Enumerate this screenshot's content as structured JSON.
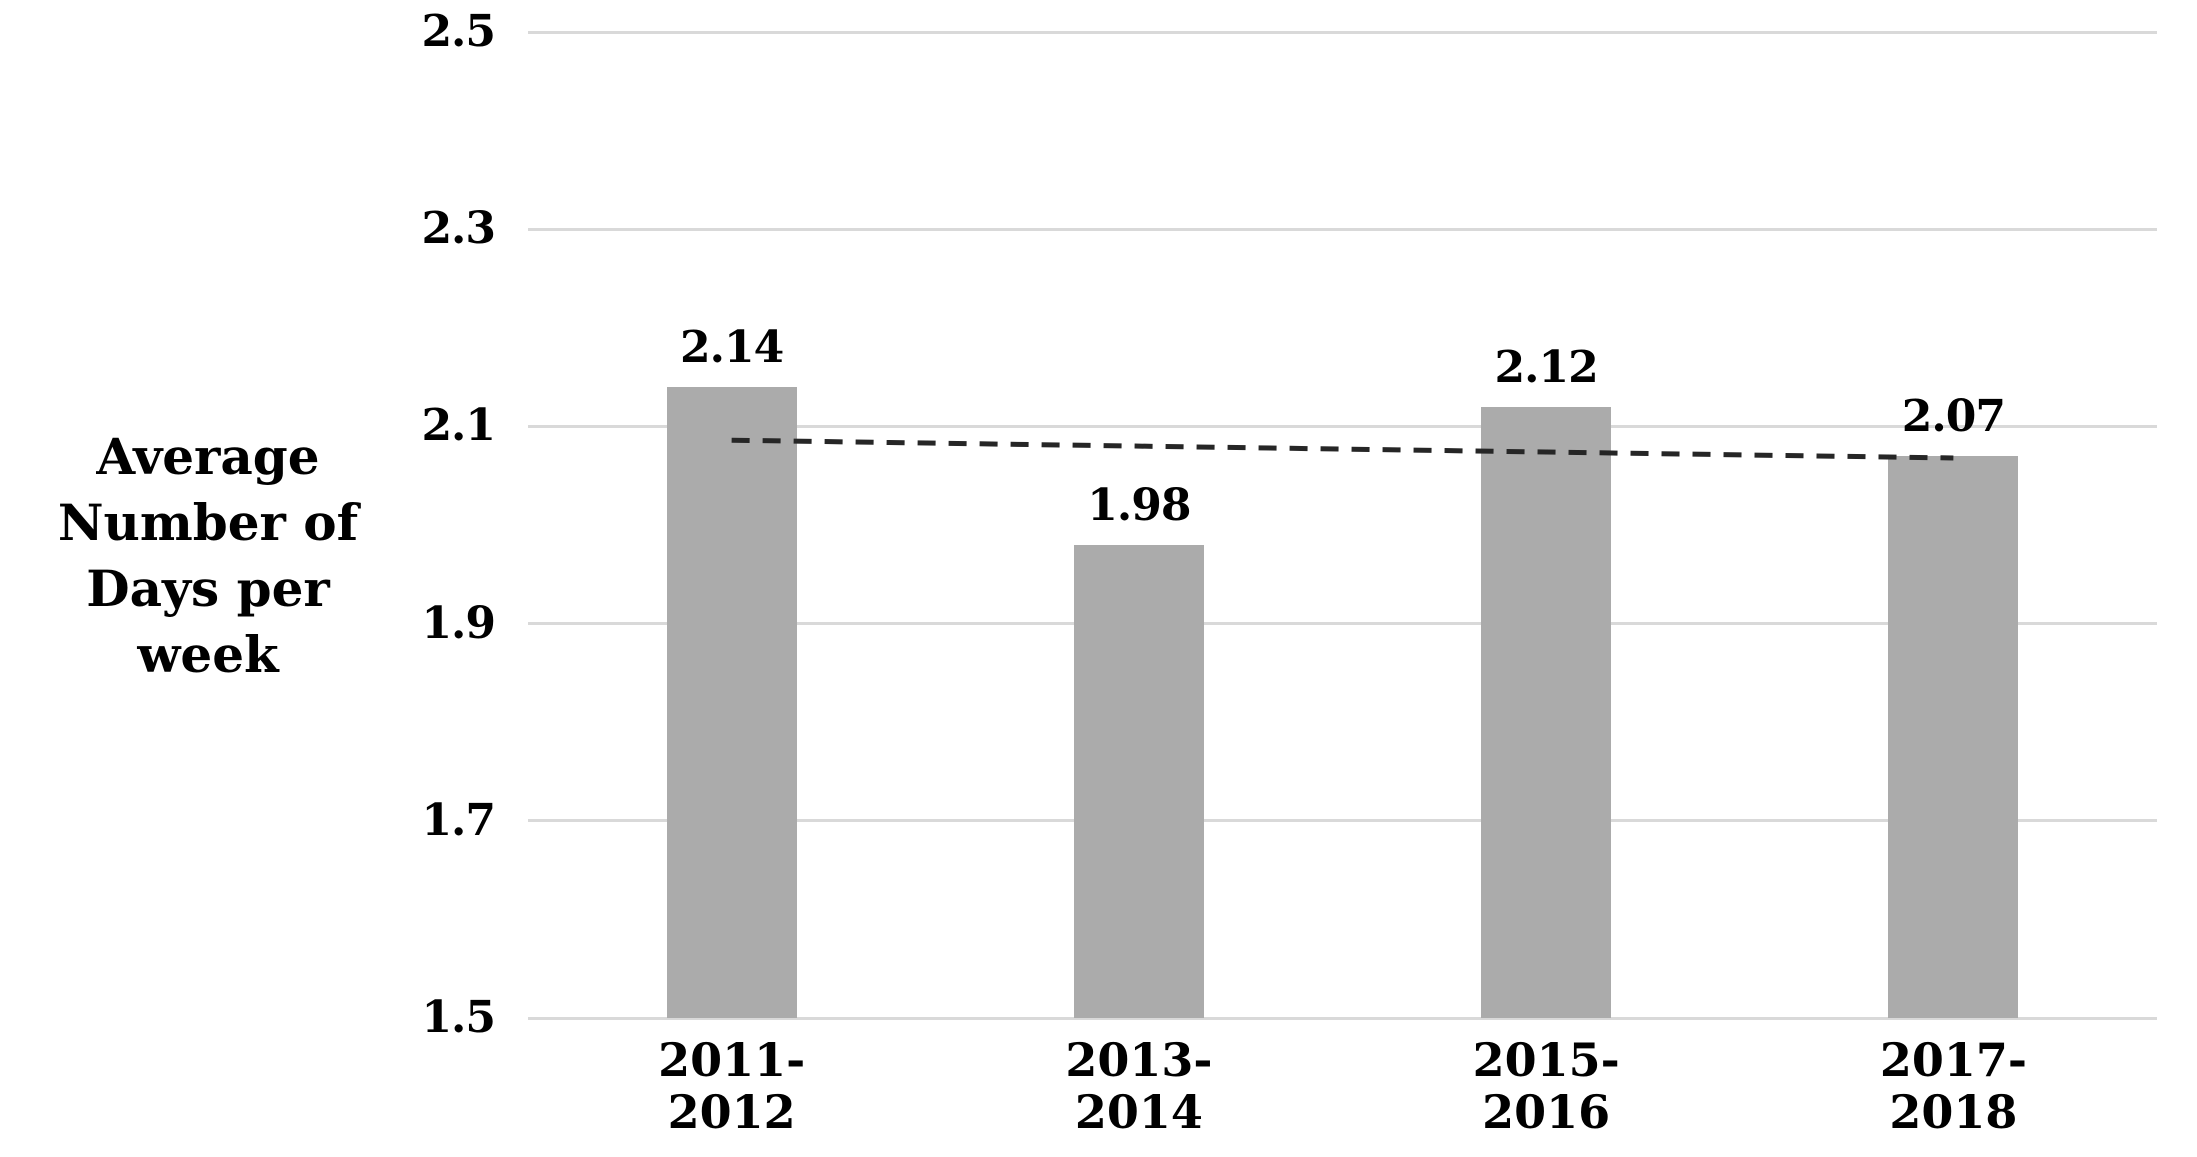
{
  "chart_data": {
    "type": "bar",
    "categories": [
      "2011-2012",
      "2013-2014",
      "2015-2016",
      "2017-2018"
    ],
    "values": [
      2.14,
      1.98,
      2.12,
      2.07
    ],
    "data_labels": [
      "2.14",
      "1.98",
      "2.12",
      "2.07"
    ],
    "title": "",
    "xlabel": "",
    "ylabel": "Average Number of Days per week",
    "ylabel_display": "Average\nNumber of\nDays per week",
    "ylim": [
      1.5,
      2.5
    ],
    "yticks": [
      2.5,
      2.3,
      2.1,
      1.9,
      1.7,
      1.5
    ],
    "ytick_labels": [
      "2.5",
      "2.3",
      "2.1",
      "1.9",
      "1.7",
      "1.5"
    ],
    "grid": "horizontal",
    "legend": "none",
    "colors": {
      "bar_fill": "#ABABAB",
      "gridline": "#D9D9D9",
      "axis_line": "#D9D9D9",
      "text": "#000000",
      "trendline": "#262626"
    },
    "trendline": {
      "style": "dashed",
      "start_value": 2.086,
      "end_value": 2.068
    }
  }
}
